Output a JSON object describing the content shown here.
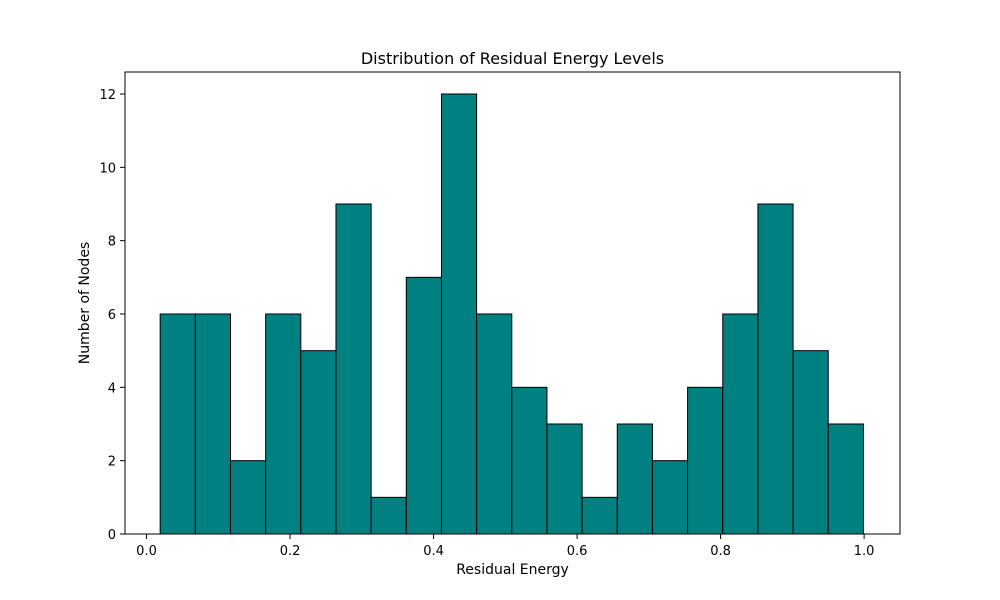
{
  "chart_data": {
    "type": "bar",
    "title": "Distribution of Residual Energy Levels",
    "xlabel": "Residual Energy",
    "ylabel": "Number of Nodes",
    "xlim": [
      -0.03,
      1.05
    ],
    "ylim": [
      0,
      12.6
    ],
    "bin_edges": [
      0.019,
      0.068,
      0.117,
      0.166,
      0.215,
      0.264,
      0.313,
      0.362,
      0.411,
      0.46,
      0.509,
      0.558,
      0.607,
      0.656,
      0.705,
      0.754,
      0.803,
      0.852,
      0.901,
      0.95,
      0.999
    ],
    "values": [
      6,
      6,
      2,
      6,
      5,
      9,
      1,
      7,
      12,
      6,
      4,
      3,
      1,
      3,
      2,
      4,
      6,
      9,
      5,
      3
    ],
    "x_ticks": [
      0.0,
      0.2,
      0.4,
      0.6,
      0.8,
      1.0
    ],
    "x_tick_labels": [
      "0.0",
      "0.2",
      "0.4",
      "0.6",
      "0.8",
      "1.0"
    ],
    "y_ticks": [
      0,
      2,
      4,
      6,
      8,
      10,
      12
    ],
    "y_tick_labels": [
      "0",
      "2",
      "4",
      "6",
      "8",
      "10",
      "12"
    ],
    "bar_color": "#008080",
    "edge_color": "#000000",
    "grid": false
  }
}
